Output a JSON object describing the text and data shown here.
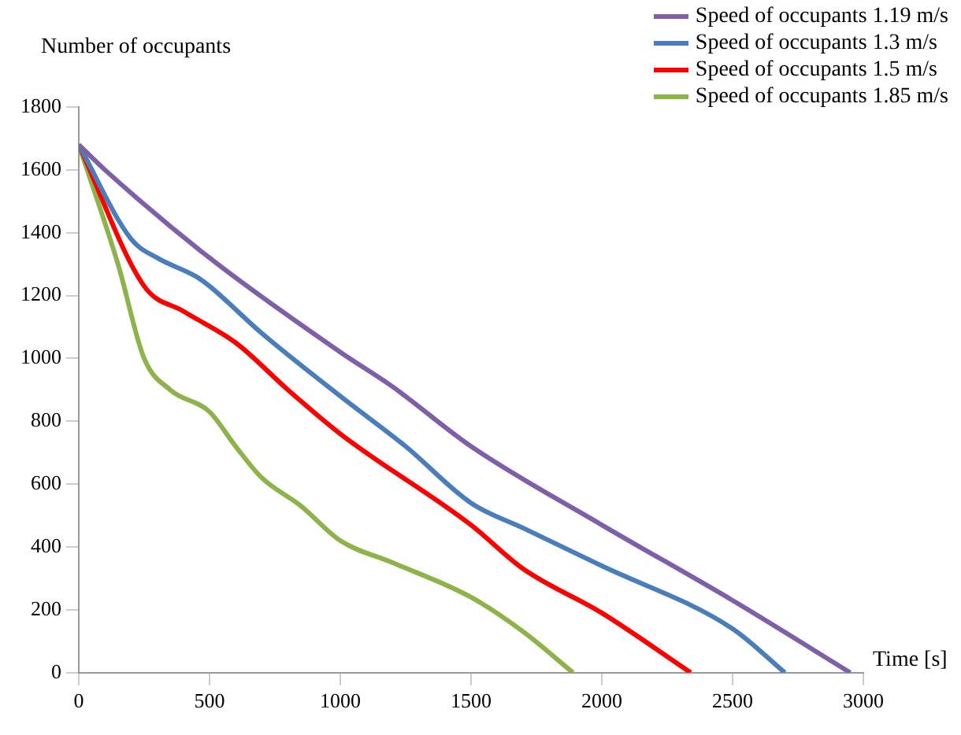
{
  "chart_data": {
    "type": "line",
    "xlabel": "Time [s]",
    "ylabel": "Number of occupants",
    "xlim": [
      0,
      3000
    ],
    "xticks": [
      0,
      500,
      1000,
      1500,
      2000,
      2500,
      3000
    ],
    "ylim": [
      0,
      1800
    ],
    "yticks": [
      0,
      200,
      400,
      600,
      800,
      1000,
      1200,
      1400,
      1600,
      1800
    ],
    "grid": false,
    "legend": "top right",
    "marker": "none",
    "line_style": "solid",
    "series": [
      {
        "name": "Speed of occupants 1.19 m/s",
        "color": "#7f5fa8",
        "x": [
          0,
          100,
          500,
          1000,
          1200,
          1500,
          2000,
          2500,
          2950
        ],
        "values": [
          1680,
          1600,
          1320,
          1020,
          910,
          720,
          470,
          230,
          0
        ]
      },
      {
        "name": "Speed of occupants 1.3 m/s",
        "color": "#4a7ebb",
        "x": [
          0,
          200,
          300,
          450,
          500,
          700,
          1000,
          1250,
          1500,
          1700,
          2000,
          2500,
          2700
        ],
        "values": [
          1680,
          1380,
          1320,
          1260,
          1230,
          1080,
          880,
          720,
          540,
          460,
          340,
          140,
          0
        ]
      },
      {
        "name": "Speed of occupants 1.5 m/s",
        "color": "#ff0000",
        "x": [
          0,
          250,
          400,
          600,
          800,
          1000,
          1500,
          1700,
          2000,
          2340
        ],
        "values": [
          1680,
          1230,
          1150,
          1050,
          900,
          760,
          470,
          330,
          190,
          0
        ]
      },
      {
        "name": "Speed of occupants 1.85 m/s",
        "color": "#8db34a",
        "x": [
          0,
          150,
          250,
          350,
          500,
          600,
          700,
          850,
          1000,
          1200,
          1500,
          1700,
          1890
        ],
        "values": [
          1680,
          1300,
          1000,
          900,
          830,
          720,
          620,
          530,
          420,
          350,
          240,
          130,
          0
        ]
      }
    ]
  }
}
